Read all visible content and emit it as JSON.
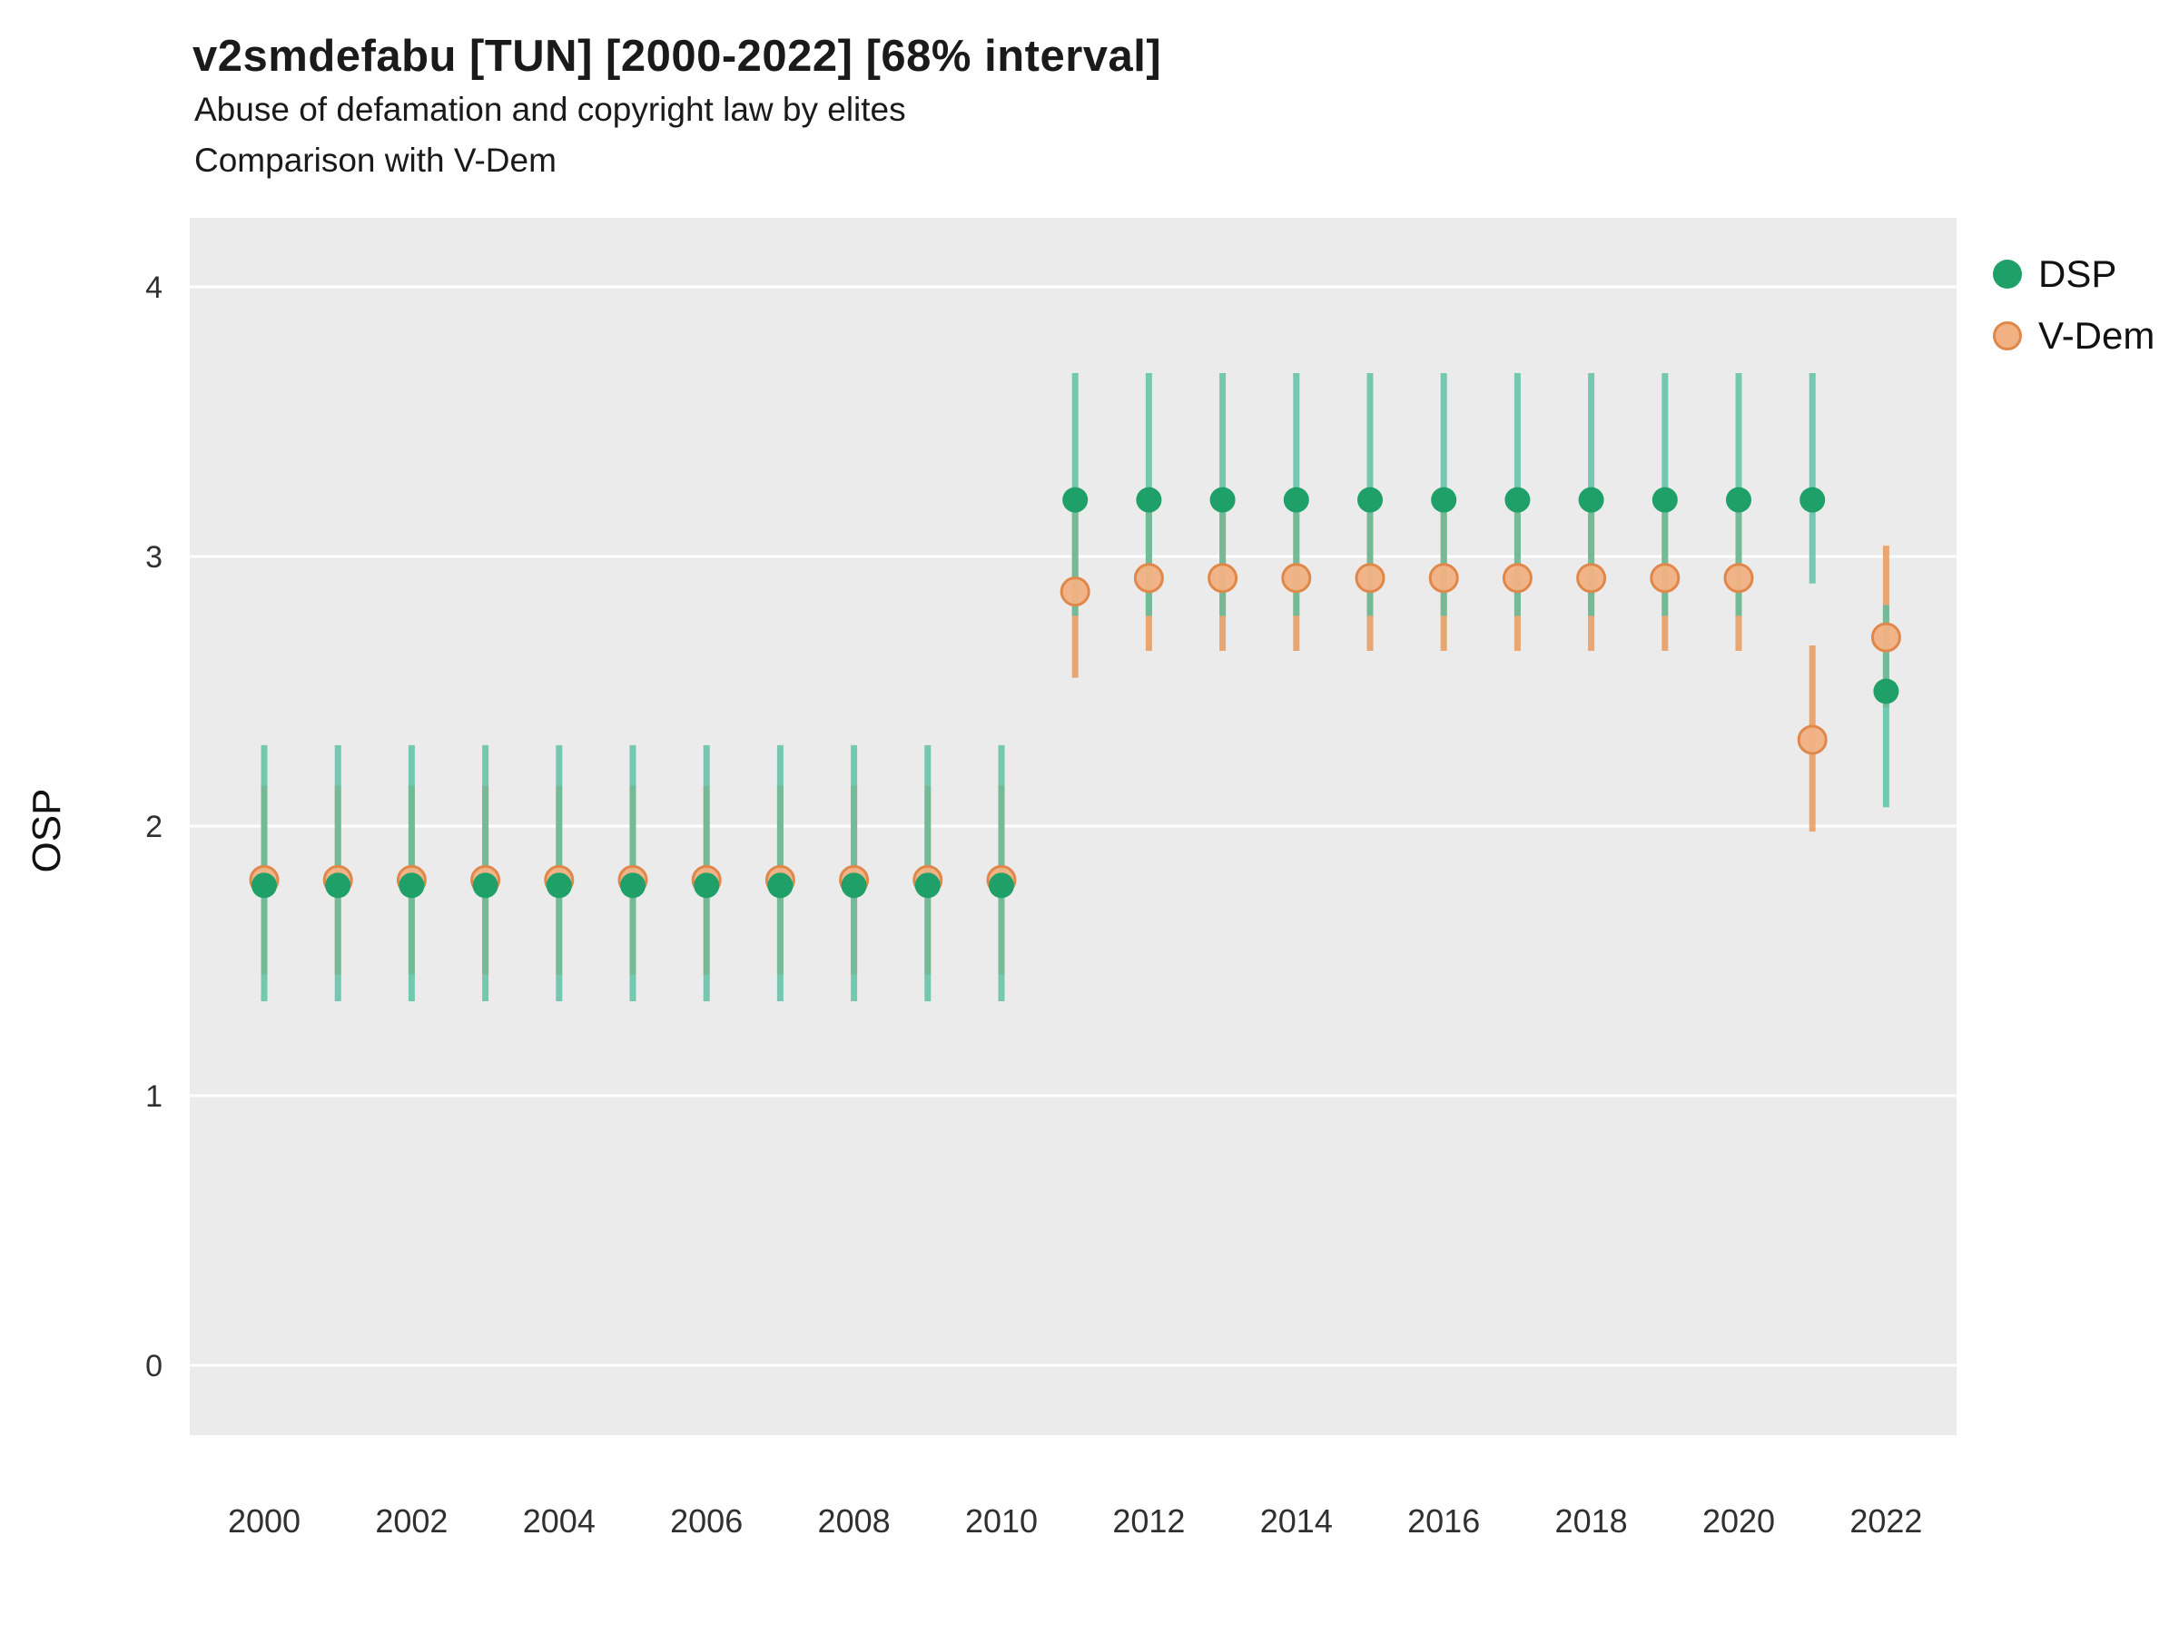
{
  "header": {
    "title": "v2smdefabu [TUN] [2000-2022] [68% interval]",
    "subtitle": "Abuse of defamation and copyright law by elites",
    "comparison_note": "Comparison with V-Dem"
  },
  "chart_data": {
    "type": "scatter",
    "title": "v2smdefabu [TUN] [2000-2022] [68% interval]",
    "subtitle": "Abuse of defamation and copyright law by elites",
    "note": "Comparison with V-Dem",
    "xlabel": "",
    "ylabel": "OSP",
    "ylim": [
      -0.26,
      4.26
    ],
    "yticks": [
      0,
      1,
      2,
      3,
      4
    ],
    "xticks": [
      2000,
      2002,
      2004,
      2006,
      2008,
      2010,
      2012,
      2014,
      2016,
      2018,
      2020,
      2022
    ],
    "panel_color": "#ebebeb",
    "grid_color": "#ffffff",
    "interval_level": "68% interval",
    "series": [
      {
        "name": "DSP",
        "color": "#1fa068",
        "stroke": "#1fa068",
        "interval_color": "#56bfa0",
        "points": [
          {
            "year": 2000,
            "est": 1.78,
            "lo": 1.35,
            "hi": 2.3
          },
          {
            "year": 2001,
            "est": 1.78,
            "lo": 1.35,
            "hi": 2.3
          },
          {
            "year": 2002,
            "est": 1.78,
            "lo": 1.35,
            "hi": 2.3
          },
          {
            "year": 2003,
            "est": 1.78,
            "lo": 1.35,
            "hi": 2.3
          },
          {
            "year": 2004,
            "est": 1.78,
            "lo": 1.35,
            "hi": 2.3
          },
          {
            "year": 2005,
            "est": 1.78,
            "lo": 1.35,
            "hi": 2.3
          },
          {
            "year": 2006,
            "est": 1.78,
            "lo": 1.35,
            "hi": 2.3
          },
          {
            "year": 2007,
            "est": 1.78,
            "lo": 1.35,
            "hi": 2.3
          },
          {
            "year": 2008,
            "est": 1.78,
            "lo": 1.35,
            "hi": 2.3
          },
          {
            "year": 2009,
            "est": 1.78,
            "lo": 1.35,
            "hi": 2.3
          },
          {
            "year": 2010,
            "est": 1.78,
            "lo": 1.35,
            "hi": 2.3
          },
          {
            "year": 2011,
            "est": 3.21,
            "lo": 2.78,
            "hi": 3.68
          },
          {
            "year": 2012,
            "est": 3.21,
            "lo": 2.78,
            "hi": 3.68
          },
          {
            "year": 2013,
            "est": 3.21,
            "lo": 2.78,
            "hi": 3.68
          },
          {
            "year": 2014,
            "est": 3.21,
            "lo": 2.78,
            "hi": 3.68
          },
          {
            "year": 2015,
            "est": 3.21,
            "lo": 2.78,
            "hi": 3.68
          },
          {
            "year": 2016,
            "est": 3.21,
            "lo": 2.78,
            "hi": 3.68
          },
          {
            "year": 2017,
            "est": 3.21,
            "lo": 2.78,
            "hi": 3.68
          },
          {
            "year": 2018,
            "est": 3.21,
            "lo": 2.78,
            "hi": 3.68
          },
          {
            "year": 2019,
            "est": 3.21,
            "lo": 2.78,
            "hi": 3.68
          },
          {
            "year": 2020,
            "est": 3.21,
            "lo": 2.78,
            "hi": 3.68
          },
          {
            "year": 2021,
            "est": 3.21,
            "lo": 2.9,
            "hi": 3.68
          },
          {
            "year": 2022,
            "est": 2.5,
            "lo": 2.07,
            "hi": 2.82
          }
        ]
      },
      {
        "name": "V-Dem",
        "color": "#f1b183",
        "stroke": "#e0874a",
        "interval_color": "#e89a5e",
        "points": [
          {
            "year": 2000,
            "est": 1.8,
            "lo": 1.45,
            "hi": 2.15
          },
          {
            "year": 2001,
            "est": 1.8,
            "lo": 1.45,
            "hi": 2.15
          },
          {
            "year": 2002,
            "est": 1.8,
            "lo": 1.45,
            "hi": 2.15
          },
          {
            "year": 2003,
            "est": 1.8,
            "lo": 1.45,
            "hi": 2.15
          },
          {
            "year": 2004,
            "est": 1.8,
            "lo": 1.45,
            "hi": 2.15
          },
          {
            "year": 2005,
            "est": 1.8,
            "lo": 1.45,
            "hi": 2.15
          },
          {
            "year": 2006,
            "est": 1.8,
            "lo": 1.45,
            "hi": 2.15
          },
          {
            "year": 2007,
            "est": 1.8,
            "lo": 1.45,
            "hi": 2.15
          },
          {
            "year": 2008,
            "est": 1.8,
            "lo": 1.45,
            "hi": 2.15
          },
          {
            "year": 2009,
            "est": 1.8,
            "lo": 1.45,
            "hi": 2.15
          },
          {
            "year": 2010,
            "est": 1.8,
            "lo": 1.45,
            "hi": 2.15
          },
          {
            "year": 2011,
            "est": 2.87,
            "lo": 2.55,
            "hi": 3.18
          },
          {
            "year": 2012,
            "est": 2.92,
            "lo": 2.65,
            "hi": 3.2
          },
          {
            "year": 2013,
            "est": 2.92,
            "lo": 2.65,
            "hi": 3.2
          },
          {
            "year": 2014,
            "est": 2.92,
            "lo": 2.65,
            "hi": 3.2
          },
          {
            "year": 2015,
            "est": 2.92,
            "lo": 2.65,
            "hi": 3.2
          },
          {
            "year": 2016,
            "est": 2.92,
            "lo": 2.65,
            "hi": 3.2
          },
          {
            "year": 2017,
            "est": 2.92,
            "lo": 2.65,
            "hi": 3.2
          },
          {
            "year": 2018,
            "est": 2.92,
            "lo": 2.65,
            "hi": 3.2
          },
          {
            "year": 2019,
            "est": 2.92,
            "lo": 2.65,
            "hi": 3.2
          },
          {
            "year": 2020,
            "est": 2.92,
            "lo": 2.65,
            "hi": 3.2
          },
          {
            "year": 2021,
            "est": 2.32,
            "lo": 1.98,
            "hi": 2.67
          },
          {
            "year": 2022,
            "est": 2.7,
            "lo": 2.44,
            "hi": 3.04
          }
        ]
      }
    ]
  }
}
